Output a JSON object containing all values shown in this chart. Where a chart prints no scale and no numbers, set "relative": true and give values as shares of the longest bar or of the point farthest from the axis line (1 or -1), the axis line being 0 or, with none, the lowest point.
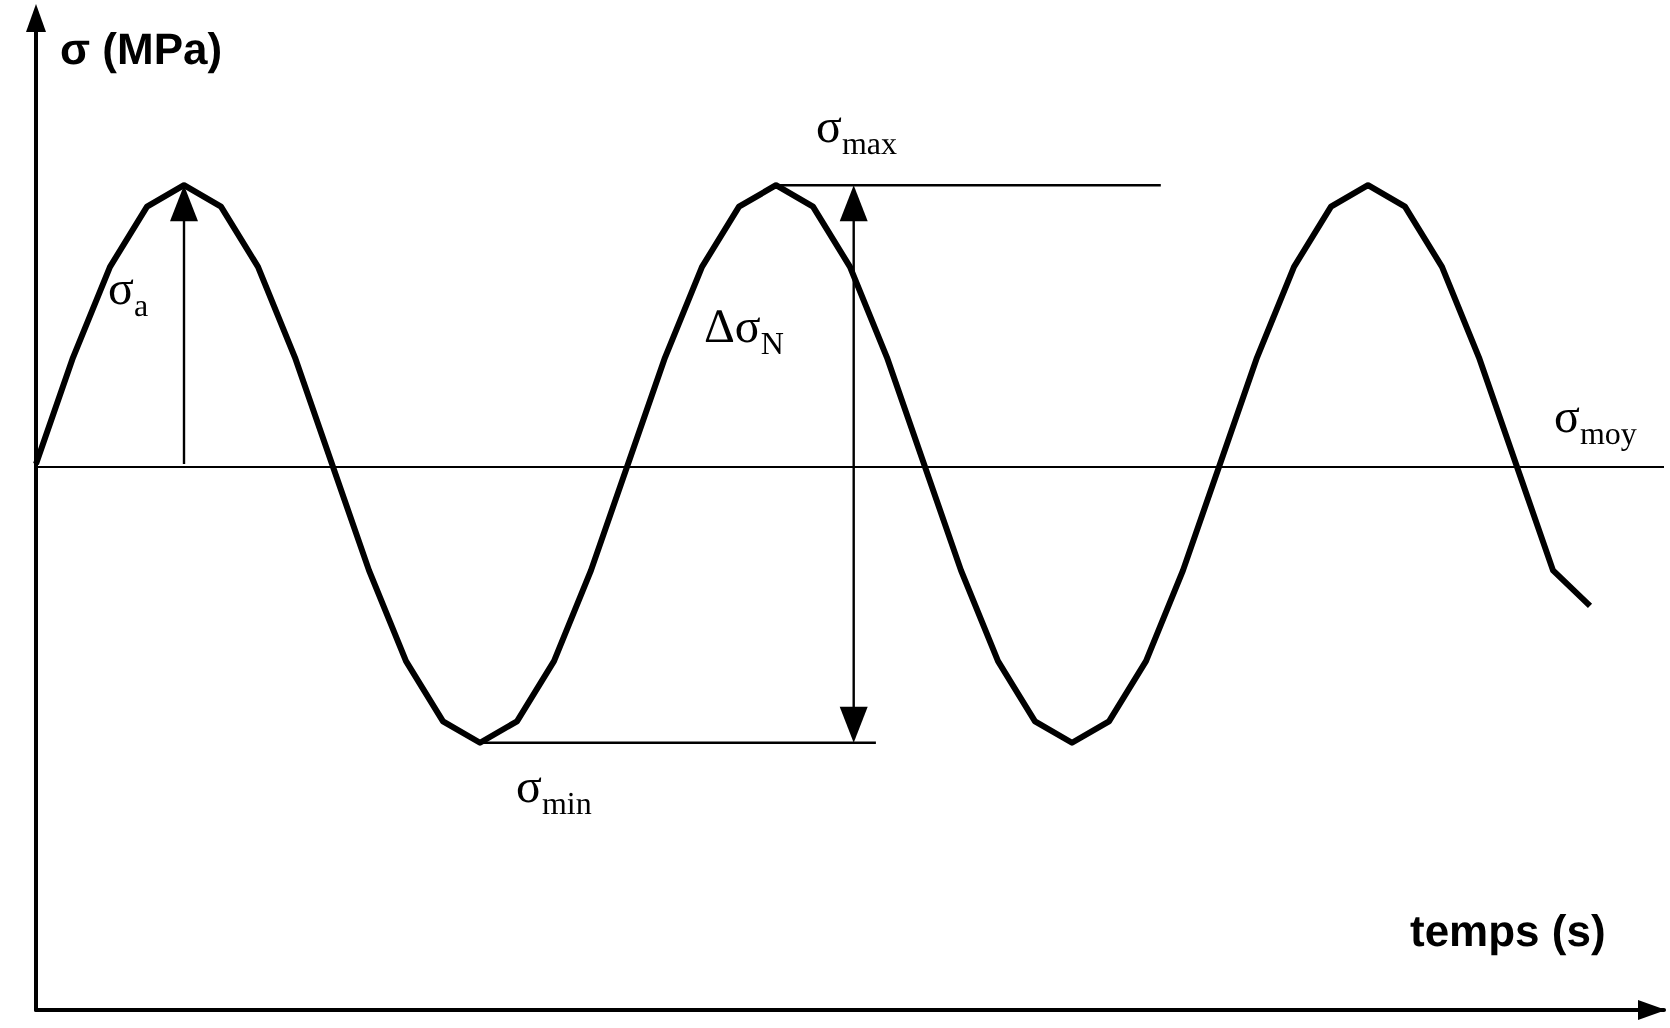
{
  "chart_data": {
    "type": "line",
    "relative": true,
    "xlabel": "temps (s)",
    "ylabel": "σ (MPa)",
    "categories": [
      null,
      null,
      null,
      null,
      null,
      null,
      null,
      null,
      null,
      null,
      null,
      null,
      null,
      null,
      null,
      null,
      null,
      null,
      null,
      null,
      null,
      null,
      null,
      null,
      null,
      null,
      null,
      null,
      null,
      null,
      null,
      null,
      null,
      null,
      null,
      null,
      null,
      null,
      null,
      null,
      null,
      null,
      null,
      null,
      null
    ],
    "series": [
      {
        "color": "#000000",
        "values": [
          0.662,
          0.791,
          0.901,
          0.974,
          1.0,
          0.974,
          0.901,
          0.791,
          0.662,
          0.533,
          0.423,
          0.35,
          0.324,
          0.35,
          0.423,
          0.533,
          0.662,
          0.791,
          0.901,
          0.974,
          1.0,
          0.974,
          0.901,
          0.791,
          0.662,
          0.533,
          0.423,
          0.35,
          0.324,
          0.35,
          0.423,
          0.533,
          0.662,
          0.791,
          0.901,
          0.974,
          1.0,
          0.974,
          0.901,
          0.791,
          0.662,
          0.533,
          0.49,
          null,
          null
        ]
      }
    ],
    "ref_lines": [
      {
        "axis": "y",
        "value": 0.662,
        "label": "σ$_{moy}$",
        "color": "#000000"
      }
    ],
    "annotations": [
      "σ$_{a}$",
      "Δσ$_{N}$",
      "σ$_{max}$",
      "σ$_{min}$"
    ],
    "grid": false
  }
}
